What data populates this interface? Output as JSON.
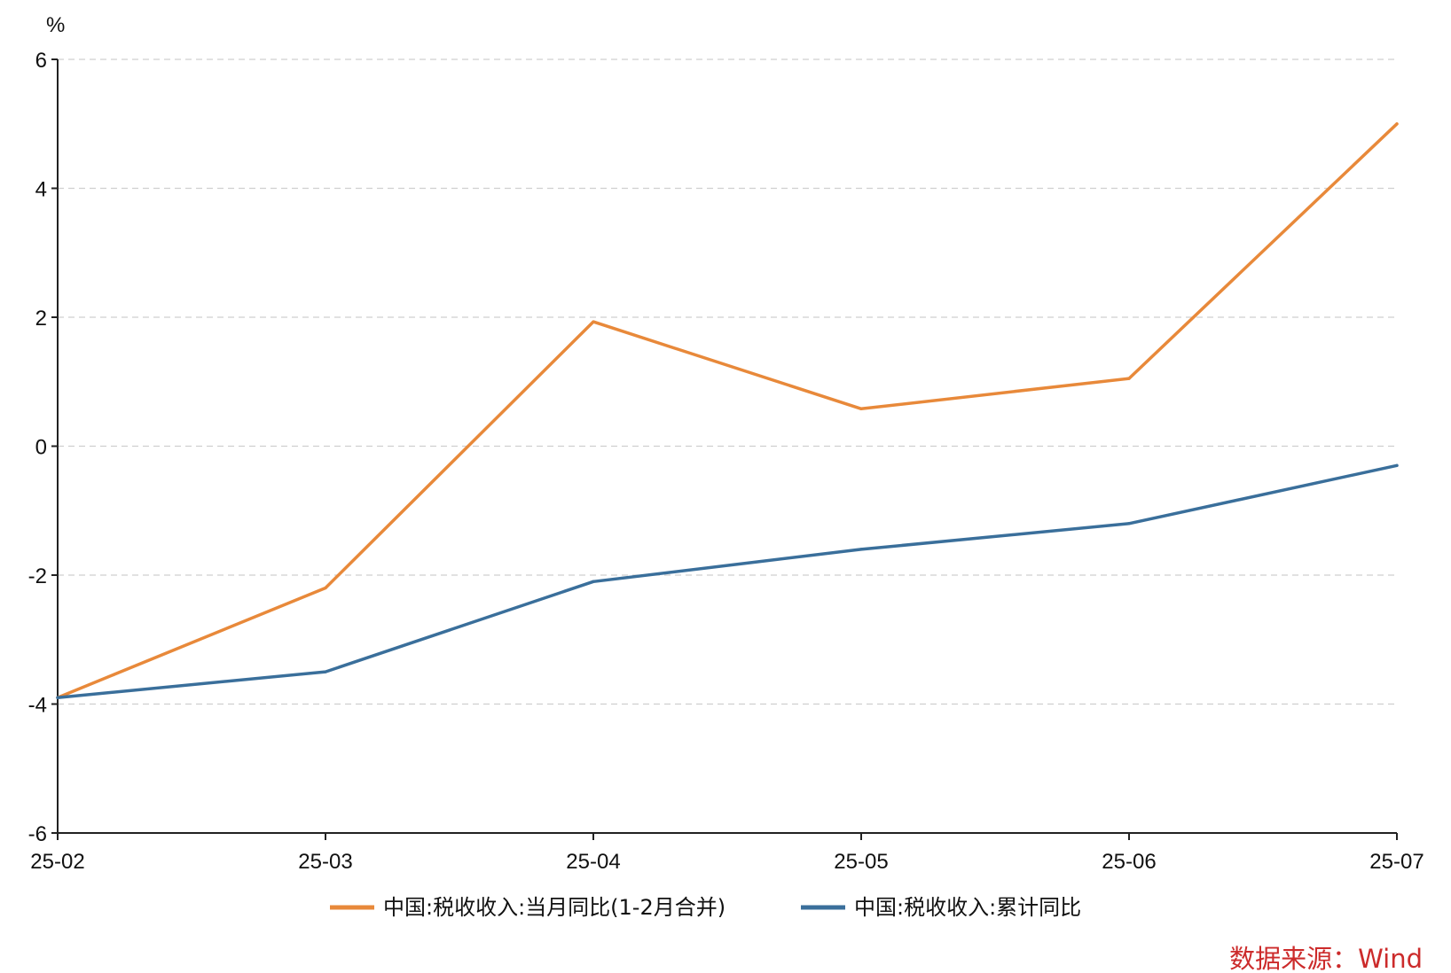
{
  "chart_data": {
    "type": "line",
    "categories": [
      "25-02",
      "25-03",
      "25-04",
      "25-05",
      "25-06",
      "25-07"
    ],
    "ylabel": "%",
    "ylim": [
      -6,
      6
    ],
    "yticks": [
      6,
      4,
      2,
      0,
      -2,
      -4,
      -6
    ],
    "ytick_labels": [
      "6",
      "4",
      "2",
      "0",
      "-2",
      "-4",
      "-6"
    ],
    "grid": "horizontal dashed",
    "legend_position": "bottom",
    "series": [
      {
        "name": "中国:税收收入:当月同比(1-2月合并)",
        "color": "#e8893a",
        "values": [
          -3.9,
          -2.2,
          1.93,
          0.58,
          1.05,
          5.0
        ]
      },
      {
        "name": "中国:税收收入:累计同比",
        "color": "#3a6f9b",
        "values": [
          -3.9,
          -3.5,
          -2.1,
          -1.6,
          -1.2,
          -0.3
        ]
      }
    ],
    "source": "数据来源：Wind"
  }
}
